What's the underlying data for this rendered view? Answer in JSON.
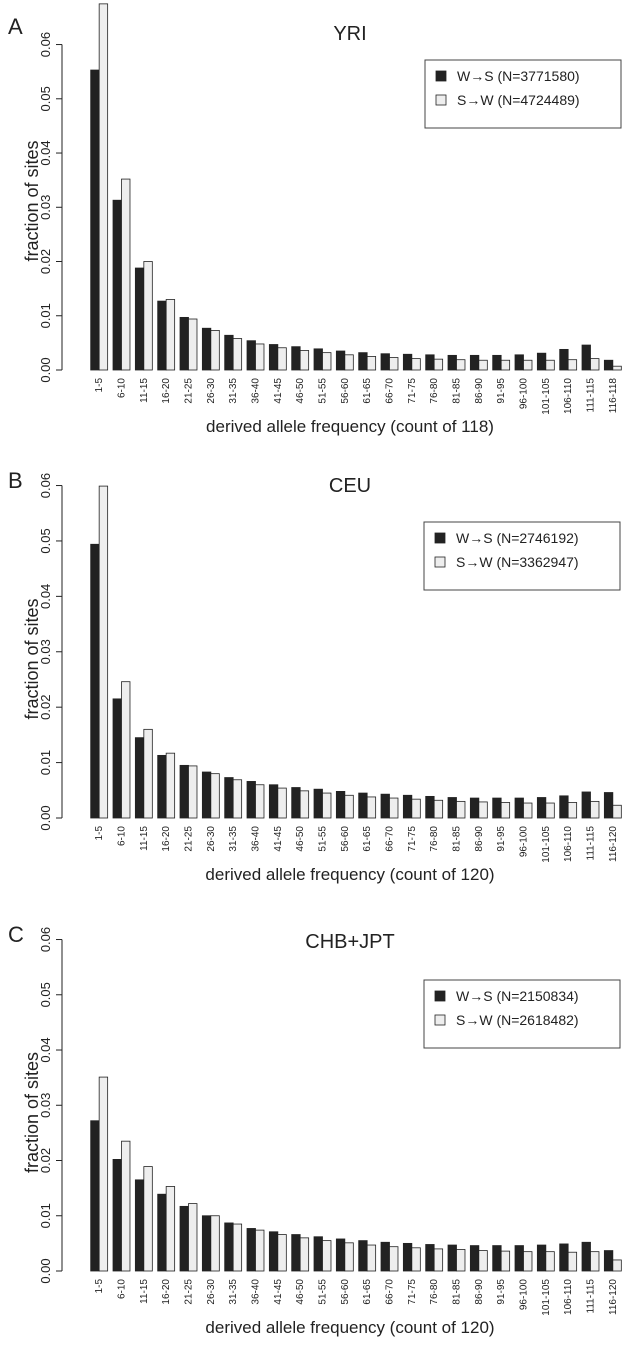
{
  "chart_data": [
    {
      "type": "bar",
      "panel": "A",
      "title": "YRI",
      "xlabel": "derived allele frequency (count of 118)",
      "ylabel": "fraction of sites",
      "ylim": [
        0,
        0.066
      ],
      "yticks": [
        "0.00",
        "0.01",
        "0.02",
        "0.03",
        "0.04",
        "0.05",
        "0.06"
      ],
      "categories": [
        "1-5",
        "6-10",
        "11-15",
        "16-20",
        "21-25",
        "26-30",
        "31-35",
        "36-40",
        "41-45",
        "46-50",
        "51-55",
        "56-60",
        "61-65",
        "66-70",
        "71-75",
        "76-80",
        "81-85",
        "86-90",
        "91-95",
        "96-100",
        "101-105",
        "106-110",
        "111-115",
        "116-118"
      ],
      "legend_position": "top-right",
      "series": [
        {
          "name": "W→S (N=3771580)",
          "color": "#222222",
          "values": [
            0.0553,
            0.0313,
            0.0188,
            0.0127,
            0.0097,
            0.0077,
            0.0064,
            0.0054,
            0.0047,
            0.0043,
            0.0039,
            0.0035,
            0.0032,
            0.003,
            0.0029,
            0.0028,
            0.0027,
            0.0027,
            0.0027,
            0.0028,
            0.0031,
            0.0038,
            0.0046,
            0.0018
          ]
        },
        {
          "name": "S→W (N=4724489)",
          "color": "#eeeeee",
          "values": [
            0.0675,
            0.0352,
            0.02,
            0.013,
            0.0094,
            0.0073,
            0.0058,
            0.0048,
            0.0041,
            0.0036,
            0.0032,
            0.0028,
            0.0025,
            0.0023,
            0.0021,
            0.002,
            0.0019,
            0.0018,
            0.0018,
            0.0018,
            0.0018,
            0.0019,
            0.0021,
            0.0007
          ]
        }
      ]
    },
    {
      "type": "bar",
      "panel": "B",
      "title": "CEU",
      "xlabel": "derived allele frequency (count of 120)",
      "ylabel": "fraction of sites",
      "ylim": [
        0,
        0.061
      ],
      "yticks": [
        "0.00",
        "0.01",
        "0.02",
        "0.03",
        "0.04",
        "0.05",
        "0.06"
      ],
      "categories": [
        "1-5",
        "6-10",
        "11-15",
        "16-20",
        "21-25",
        "26-30",
        "31-35",
        "36-40",
        "41-45",
        "46-50",
        "51-55",
        "56-60",
        "61-65",
        "66-70",
        "71-75",
        "76-80",
        "81-85",
        "86-90",
        "91-95",
        "96-100",
        "101-105",
        "106-110",
        "111-115",
        "116-120"
      ],
      "legend_position": "top-right",
      "series": [
        {
          "name": "W→S (N=2746192)",
          "color": "#222222",
          "values": [
            0.0494,
            0.0215,
            0.0145,
            0.0113,
            0.0095,
            0.0083,
            0.0073,
            0.0066,
            0.006,
            0.0055,
            0.0052,
            0.0048,
            0.0045,
            0.0043,
            0.0041,
            0.0039,
            0.0037,
            0.0036,
            0.0036,
            0.0036,
            0.0037,
            0.004,
            0.0047,
            0.0046
          ]
        },
        {
          "name": "S→W (N=3362947)",
          "color": "#eeeeee",
          "values": [
            0.0599,
            0.0246,
            0.016,
            0.0117,
            0.0094,
            0.008,
            0.0069,
            0.006,
            0.0054,
            0.0049,
            0.0045,
            0.0041,
            0.0038,
            0.0036,
            0.0034,
            0.0032,
            0.003,
            0.0029,
            0.0028,
            0.0027,
            0.0027,
            0.0028,
            0.003,
            0.0023
          ]
        }
      ]
    },
    {
      "type": "bar",
      "panel": "C",
      "title": "CHB+JPT",
      "xlabel": "derived allele frequency (count of 120)",
      "ylabel": "fraction of sites",
      "ylim": [
        0,
        0.061
      ],
      "yticks": [
        "0.00",
        "0.01",
        "0.02",
        "0.03",
        "0.04",
        "0.05",
        "0.06"
      ],
      "categories": [
        "1-5",
        "6-10",
        "11-15",
        "16-20",
        "21-25",
        "26-30",
        "31-35",
        "36-40",
        "41-45",
        "46-50",
        "51-55",
        "56-60",
        "61-65",
        "66-70",
        "71-75",
        "76-80",
        "81-85",
        "86-90",
        "91-95",
        "96-100",
        "101-105",
        "106-110",
        "111-115",
        "116-120"
      ],
      "legend_position": "top-right",
      "series": [
        {
          "name": "W→S (N=2150834)",
          "color": "#222222",
          "values": [
            0.0272,
            0.0202,
            0.0165,
            0.0139,
            0.0117,
            0.01,
            0.0087,
            0.0077,
            0.0071,
            0.0066,
            0.0062,
            0.0058,
            0.0055,
            0.0052,
            0.005,
            0.0048,
            0.0047,
            0.0046,
            0.0046,
            0.0046,
            0.0047,
            0.0049,
            0.0052,
            0.0037
          ]
        },
        {
          "name": "S→W (N=2618482)",
          "color": "#eeeeee",
          "values": [
            0.0351,
            0.0235,
            0.0189,
            0.0153,
            0.0122,
            0.01,
            0.0085,
            0.0074,
            0.0066,
            0.006,
            0.0055,
            0.0051,
            0.0047,
            0.0044,
            0.0042,
            0.004,
            0.0039,
            0.0037,
            0.0036,
            0.0035,
            0.0035,
            0.0034,
            0.0035,
            0.002
          ]
        }
      ]
    }
  ]
}
